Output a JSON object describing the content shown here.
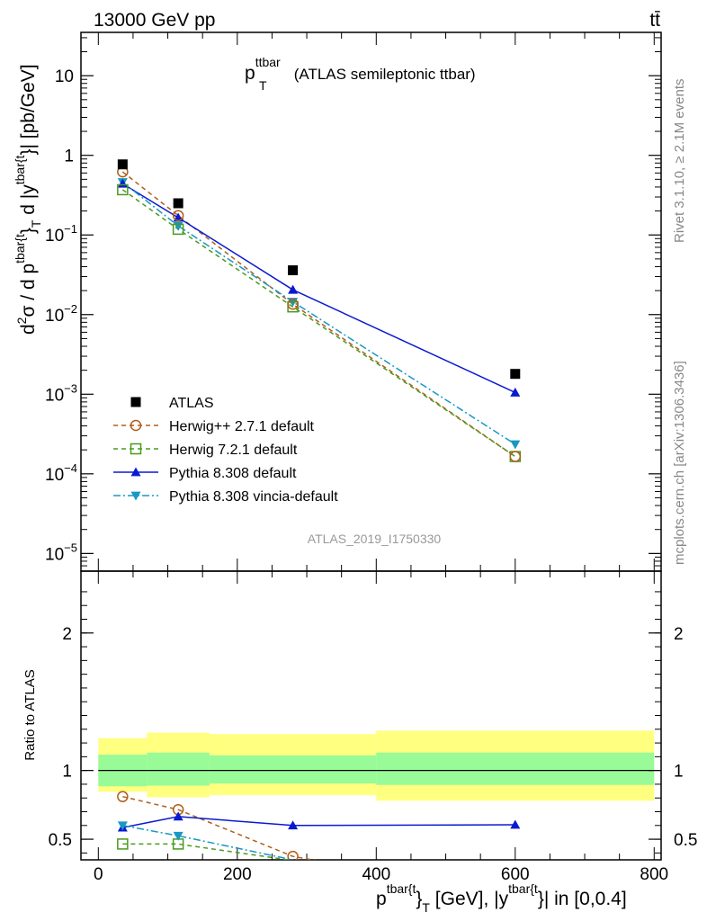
{
  "header": {
    "energy_label": "13000 GeV pp",
    "process_label": "tt̄"
  },
  "side_labels": {
    "rivet": "Rivet 3.1.10, ≥ 2.1M events",
    "mcplots": "mcplots.cern.ch [arXiv:1306.3436]"
  },
  "chart_data": [
    {
      "type": "line",
      "panel": "main",
      "title_main": "p",
      "title_sup": "ttbar",
      "title_sub": "T",
      "title_suffix": " (ATLAS semileptonic ttbar)",
      "watermark": "ATLAS_2019_I1750330",
      "ylabel_prefix": "d",
      "ylabel_sup2": "2",
      "ylabel_mid": "σ / d p",
      "ylabel_sup_t": "tbar{t",
      "ylabel_close": "}",
      "ylabel_sub": "T",
      "ylabel_mid2": " d |y",
      "ylabel_sup_t2": "tbar{t",
      "ylabel_end": "}| [pb/GeV]",
      "yscale": "log",
      "ylim": [
        6e-06,
        35
      ],
      "xlim": [
        -25,
        810
      ],
      "y_ticks": [
        {
          "value": 10,
          "label": "10"
        },
        {
          "value": 1,
          "label": "1"
        },
        {
          "value": 0.1,
          "base": "10",
          "exp": "−1"
        },
        {
          "value": 0.01,
          "base": "10",
          "exp": "−2"
        },
        {
          "value": 0.001,
          "base": "10",
          "exp": "−3"
        },
        {
          "value": 0.0001,
          "base": "10",
          "exp": "−4"
        },
        {
          "value": 1e-05,
          "base": "10",
          "exp": "−5"
        }
      ],
      "legend_position": "lower-left",
      "series": [
        {
          "name": "ATLAS",
          "color": "#000000",
          "marker": "square-filled",
          "line": "none",
          "x": [
            35,
            115,
            280,
            600
          ],
          "y": [
            0.77,
            0.25,
            0.036,
            0.0018
          ]
        },
        {
          "name": "Herwig++ 2.7.1 default",
          "color": "#b05e1b",
          "marker": "circle-open",
          "line": "dashed",
          "x": [
            35,
            115,
            280,
            600
          ],
          "y": [
            0.62,
            0.175,
            0.0135,
            0.000165
          ]
        },
        {
          "name": "Herwig 7.2.1 default",
          "color": "#4a9a1e",
          "marker": "square-open",
          "line": "dashed",
          "x": [
            35,
            115,
            280,
            600
          ],
          "y": [
            0.37,
            0.118,
            0.0125,
            0.000165
          ]
        },
        {
          "name": "Pythia 8.308 default",
          "color": "#0a1ad0",
          "marker": "triangle-up",
          "line": "solid",
          "x": [
            35,
            115,
            280,
            600
          ],
          "y": [
            0.44,
            0.165,
            0.0205,
            0.00105
          ]
        },
        {
          "name": "Pythia 8.308 vincia-default",
          "color": "#1898c4",
          "marker": "triangle-down",
          "line": "dashdot",
          "x": [
            35,
            115,
            280,
            600
          ],
          "y": [
            0.46,
            0.13,
            0.0145,
            0.000235
          ]
        }
      ]
    },
    {
      "type": "line",
      "panel": "ratio",
      "ylabel": "Ratio to ATLAS",
      "ylim": [
        0.35,
        2.45
      ],
      "y_ticks": [
        {
          "value": 2,
          "label": "2"
        },
        {
          "value": 1,
          "label": "1"
        },
        {
          "value": 0.5,
          "label": "0.5"
        }
      ],
      "x_ticks": [
        {
          "value": 0,
          "label": "0"
        },
        {
          "value": 200,
          "label": "200"
        },
        {
          "value": 400,
          "label": "400"
        },
        {
          "value": 600,
          "label": "600"
        },
        {
          "value": 800,
          "label": "800"
        }
      ],
      "xlabel_prefix": "p",
      "xlabel_sup": "tbar{t",
      "xlabel_close": "}",
      "xlabel_sub": "T",
      "xlabel_mid": " [GeV], |y",
      "xlabel_sup2": "tbar{t",
      "xlabel_end": "}| in [0,0.4]",
      "bins": [
        {
          "xlo": 0,
          "xhi": 70,
          "stat_lo": 0.885,
          "stat_hi": 1.115,
          "tot_lo": 0.845,
          "tot_hi": 1.235
        },
        {
          "xlo": 70,
          "xhi": 160,
          "stat_lo": 0.89,
          "stat_hi": 1.13,
          "tot_lo": 0.805,
          "tot_hi": 1.275
        },
        {
          "xlo": 160,
          "xhi": 400,
          "stat_lo": 0.905,
          "stat_hi": 1.11,
          "tot_lo": 0.82,
          "tot_hi": 1.265
        },
        {
          "xlo": 400,
          "xhi": 800,
          "stat_lo": 0.895,
          "stat_hi": 1.13,
          "tot_lo": 0.78,
          "tot_hi": 1.29
        }
      ],
      "series": [
        {
          "name": "Herwig++ 2.7.1 default",
          "color": "#b05e1b",
          "marker": "circle-open",
          "line": "dashed",
          "x": [
            35,
            115,
            280
          ],
          "y": [
            0.81,
            0.715,
            0.375
          ],
          "extends_to_x": 600,
          "extends_to_y": 0.09
        },
        {
          "name": "Herwig 7.2.1 default",
          "color": "#4a9a1e",
          "marker": "square-open",
          "line": "dashed",
          "x": [
            35,
            115
          ],
          "y": [
            0.465,
            0.465
          ],
          "extends_to_x": 280,
          "extends_to_y": 0.345
        },
        {
          "name": "Pythia 8.308 default",
          "color": "#0a1ad0",
          "marker": "triangle-up",
          "line": "solid",
          "x": [
            35,
            115,
            280,
            600
          ],
          "y": [
            0.585,
            0.665,
            0.6,
            0.605
          ]
        },
        {
          "name": "Pythia 8.308 vincia-default",
          "color": "#1898c4",
          "marker": "triangle-down",
          "line": "dashdot",
          "x": [
            35,
            115
          ],
          "y": [
            0.6,
            0.525
          ],
          "extends_to_x": 280,
          "extends_to_y": 0.35
        }
      ]
    }
  ]
}
